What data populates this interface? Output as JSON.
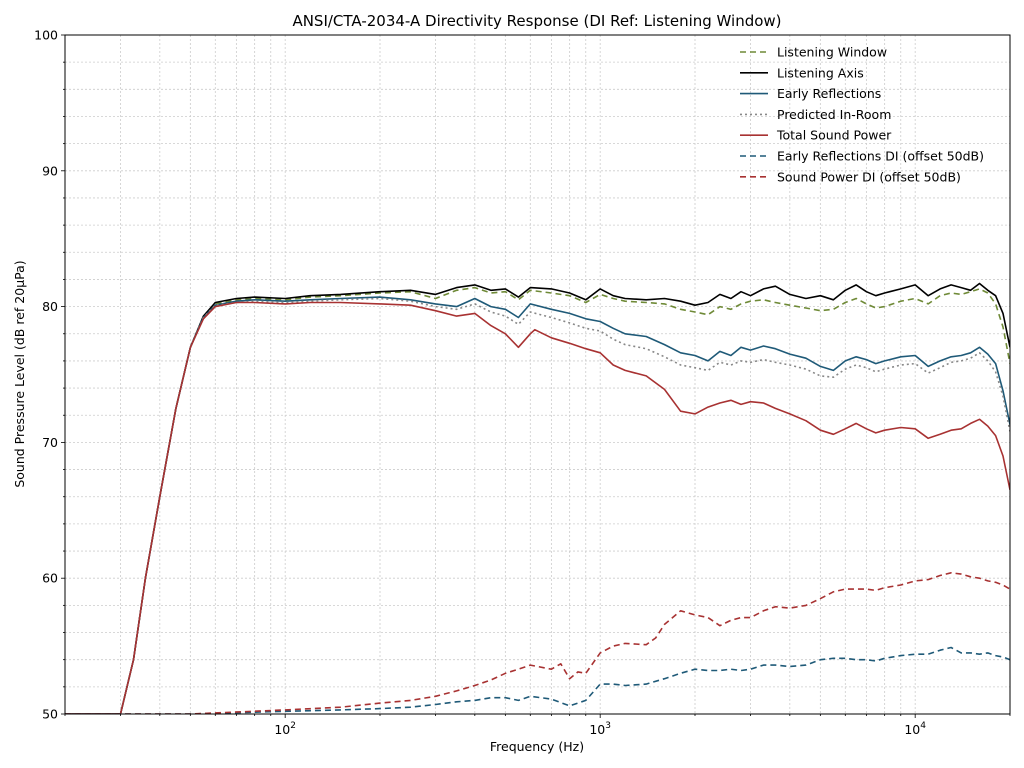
{
  "chart_data": {
    "type": "line",
    "title": "ANSI/CTA-2034-A Directivity Response (DI Ref: Listening Window)",
    "xlabel": "Frequency (Hz)",
    "ylabel": "Sound Pressure Level (dB ref 20µPa)",
    "xscale": "log",
    "xlim": [
      20,
      20000
    ],
    "ylim": [
      50,
      100
    ],
    "grid": true,
    "legend_position": "top-right",
    "x_ticks": [
      {
        "value": 100,
        "base": "10",
        "exp": "2"
      },
      {
        "value": 1000,
        "base": "10",
        "exp": "3"
      },
      {
        "value": 10000,
        "base": "10",
        "exp": "4"
      }
    ],
    "y_ticks": [
      50,
      60,
      70,
      80,
      90,
      100
    ],
    "series": [
      {
        "name": "Listening Window",
        "color": "#6f8a37",
        "dash": "6,4",
        "width": 1.6,
        "x": [
          20,
          30,
          33,
          36,
          40,
          45,
          50,
          55,
          60,
          70,
          80,
          100,
          120,
          150,
          200,
          250,
          300,
          350,
          400,
          450,
          500,
          550,
          600,
          700,
          800,
          900,
          1000,
          1100,
          1200,
          1400,
          1600,
          1800,
          2000,
          2200,
          2400,
          2600,
          2800,
          3000,
          3300,
          3600,
          4000,
          4500,
          5000,
          5500,
          6000,
          6500,
          7000,
          7500,
          8000,
          9000,
          10000,
          11000,
          12000,
          13000,
          14000,
          15000,
          16000,
          17000,
          18000,
          19000,
          20000
        ],
        "y": [
          50,
          50,
          54,
          60,
          66,
          72.5,
          77,
          79.2,
          80.2,
          80.5,
          80.6,
          80.5,
          80.7,
          80.8,
          81.0,
          81.1,
          80.6,
          81.2,
          81.4,
          81.0,
          81.1,
          80.5,
          81.2,
          81.0,
          80.8,
          80.3,
          80.9,
          80.6,
          80.4,
          80.3,
          80.2,
          79.8,
          79.6,
          79.4,
          80.0,
          79.8,
          80.2,
          80.4,
          80.5,
          80.3,
          80.1,
          79.9,
          79.7,
          79.8,
          80.3,
          80.6,
          80.2,
          79.9,
          80.0,
          80.4,
          80.6,
          80.2,
          80.8,
          81.0,
          80.9,
          81.1,
          81.3,
          81.0,
          80.2,
          78.5,
          75.8
        ]
      },
      {
        "name": "Listening Axis",
        "color": "#000000",
        "dash": "",
        "width": 1.6,
        "x": [
          20,
          30,
          33,
          36,
          40,
          45,
          50,
          55,
          60,
          70,
          80,
          100,
          120,
          150,
          200,
          250,
          300,
          350,
          400,
          450,
          500,
          550,
          600,
          700,
          800,
          900,
          1000,
          1100,
          1200,
          1400,
          1600,
          1800,
          2000,
          2200,
          2400,
          2600,
          2800,
          3000,
          3300,
          3600,
          4000,
          4500,
          5000,
          5500,
          6000,
          6500,
          7000,
          7500,
          8000,
          9000,
          10000,
          11000,
          12000,
          13000,
          14000,
          15000,
          16000,
          17000,
          18000,
          19000,
          20000
        ],
        "y": [
          50,
          50,
          54,
          60,
          66,
          72.5,
          77,
          79.3,
          80.3,
          80.6,
          80.7,
          80.6,
          80.8,
          80.9,
          81.1,
          81.2,
          80.9,
          81.4,
          81.6,
          81.2,
          81.3,
          80.7,
          81.4,
          81.3,
          81.0,
          80.5,
          81.3,
          80.8,
          80.6,
          80.5,
          80.6,
          80.4,
          80.1,
          80.3,
          80.9,
          80.6,
          81.1,
          80.8,
          81.3,
          81.5,
          80.9,
          80.6,
          80.8,
          80.5,
          81.2,
          81.6,
          81.1,
          80.8,
          81.0,
          81.3,
          81.6,
          80.8,
          81.3,
          81.6,
          81.4,
          81.2,
          81.7,
          81.2,
          80.8,
          79.5,
          77.0
        ]
      },
      {
        "name": "Early Reflections",
        "color": "#1f5a78",
        "dash": "",
        "width": 1.6,
        "x": [
          20,
          30,
          33,
          36,
          40,
          45,
          50,
          55,
          60,
          70,
          80,
          100,
          120,
          150,
          200,
          250,
          300,
          350,
          400,
          450,
          500,
          550,
          600,
          700,
          800,
          900,
          1000,
          1100,
          1200,
          1400,
          1600,
          1800,
          2000,
          2200,
          2400,
          2600,
          2800,
          3000,
          3300,
          3600,
          4000,
          4500,
          5000,
          5500,
          6000,
          6500,
          7000,
          7500,
          8000,
          9000,
          10000,
          11000,
          12000,
          13000,
          14000,
          15000,
          16000,
          17000,
          18000,
          19000,
          20000
        ],
        "y": [
          50,
          50,
          54,
          60,
          66,
          72.5,
          77,
          79.2,
          80.1,
          80.4,
          80.5,
          80.4,
          80.5,
          80.6,
          80.7,
          80.5,
          80.2,
          80.0,
          80.6,
          80.0,
          79.8,
          79.2,
          80.2,
          79.8,
          79.5,
          79.1,
          78.9,
          78.4,
          78.0,
          77.8,
          77.2,
          76.6,
          76.4,
          76.0,
          76.7,
          76.4,
          77.0,
          76.8,
          77.1,
          76.9,
          76.5,
          76.2,
          75.6,
          75.3,
          76.0,
          76.3,
          76.1,
          75.8,
          76.0,
          76.3,
          76.4,
          75.6,
          76.0,
          76.3,
          76.4,
          76.6,
          77.0,
          76.5,
          75.8,
          73.8,
          71.3
        ]
      },
      {
        "name": "Predicted In-Room",
        "color": "#888888",
        "dash": "2,3",
        "width": 1.6,
        "x": [
          20,
          30,
          33,
          36,
          40,
          45,
          50,
          55,
          60,
          70,
          80,
          100,
          120,
          150,
          200,
          250,
          300,
          350,
          400,
          450,
          500,
          550,
          600,
          700,
          800,
          900,
          1000,
          1100,
          1200,
          1400,
          1600,
          1800,
          2000,
          2200,
          2400,
          2600,
          2800,
          3000,
          3300,
          3600,
          4000,
          4500,
          5000,
          5500,
          6000,
          6500,
          7000,
          7500,
          8000,
          9000,
          10000,
          11000,
          12000,
          13000,
          14000,
          15000,
          16000,
          17000,
          18000,
          19000,
          20000
        ],
        "y": [
          50,
          50,
          54,
          60,
          66,
          72.5,
          77,
          79.2,
          80.1,
          80.3,
          80.4,
          80.3,
          80.4,
          80.5,
          80.6,
          80.4,
          80.0,
          79.8,
          80.2,
          79.6,
          79.3,
          78.7,
          79.6,
          79.2,
          78.8,
          78.4,
          78.2,
          77.6,
          77.2,
          76.9,
          76.3,
          75.7,
          75.5,
          75.3,
          75.9,
          75.7,
          76.0,
          75.9,
          76.1,
          75.9,
          75.7,
          75.4,
          74.9,
          74.8,
          75.4,
          75.7,
          75.5,
          75.2,
          75.4,
          75.7,
          75.8,
          75.1,
          75.5,
          75.9,
          76.0,
          76.2,
          76.6,
          76.0,
          75.2,
          73.4,
          70.8
        ]
      },
      {
        "name": "Total Sound Power",
        "color": "#a83232",
        "dash": "",
        "width": 1.6,
        "x": [
          20,
          30,
          33,
          36,
          40,
          45,
          50,
          55,
          60,
          70,
          80,
          100,
          120,
          150,
          200,
          250,
          300,
          350,
          400,
          450,
          500,
          550,
          600,
          620,
          700,
          800,
          900,
          1000,
          1100,
          1200,
          1400,
          1600,
          1800,
          2000,
          2200,
          2400,
          2600,
          2800,
          3000,
          3300,
          3600,
          4000,
          4500,
          5000,
          5500,
          6000,
          6500,
          7000,
          7500,
          8000,
          9000,
          10000,
          11000,
          12000,
          13000,
          14000,
          15000,
          16000,
          17000,
          18000,
          19000,
          20000
        ],
        "y": [
          50,
          50,
          54,
          60,
          66,
          72.5,
          77,
          79.1,
          80.0,
          80.3,
          80.3,
          80.2,
          80.3,
          80.3,
          80.2,
          80.1,
          79.7,
          79.3,
          79.5,
          78.6,
          78.0,
          77.0,
          78.0,
          78.3,
          77.7,
          77.3,
          76.9,
          76.6,
          75.7,
          75.3,
          74.9,
          73.9,
          72.3,
          72.1,
          72.6,
          72.9,
          73.1,
          72.8,
          73.0,
          72.9,
          72.5,
          72.1,
          71.6,
          70.9,
          70.6,
          71.0,
          71.4,
          71.0,
          70.7,
          70.9,
          71.1,
          71.0,
          70.3,
          70.6,
          70.9,
          71.0,
          71.4,
          71.7,
          71.2,
          70.5,
          69.0,
          66.5
        ]
      },
      {
        "name": "Early Reflections DI (offset 50dB)",
        "color": "#1f5a78",
        "dash": "6,4",
        "width": 1.6,
        "x": [
          20,
          30,
          50,
          100,
          150,
          200,
          250,
          300,
          350,
          400,
          450,
          500,
          550,
          600,
          700,
          800,
          900,
          1000,
          1100,
          1200,
          1400,
          1600,
          1800,
          2000,
          2200,
          2400,
          2600,
          2800,
          3000,
          3300,
          3600,
          4000,
          4500,
          5000,
          5500,
          6000,
          6500,
          7000,
          7500,
          8000,
          9000,
          10000,
          11000,
          12000,
          13000,
          14000,
          15000,
          16000,
          17000,
          18000,
          19000,
          20000
        ],
        "y": [
          50,
          50,
          50,
          50.2,
          50.3,
          50.4,
          50.5,
          50.7,
          50.9,
          51.0,
          51.2,
          51.2,
          51.0,
          51.3,
          51.1,
          50.6,
          51.0,
          52.2,
          52.2,
          52.1,
          52.2,
          52.6,
          53.0,
          53.3,
          53.2,
          53.2,
          53.3,
          53.2,
          53.3,
          53.6,
          53.6,
          53.5,
          53.6,
          54.0,
          54.1,
          54.1,
          54.0,
          54.0,
          53.9,
          54.1,
          54.3,
          54.4,
          54.4,
          54.7,
          54.9,
          54.5,
          54.5,
          54.4,
          54.5,
          54.3,
          54.2,
          54.0
        ]
      },
      {
        "name": "Sound Power DI (offset 50dB)",
        "color": "#a83232",
        "dash": "6,4",
        "width": 1.6,
        "x": [
          20,
          30,
          50,
          100,
          150,
          200,
          250,
          300,
          350,
          400,
          450,
          500,
          550,
          600,
          700,
          750,
          800,
          850,
          900,
          1000,
          1100,
          1200,
          1400,
          1500,
          1600,
          1800,
          2000,
          2200,
          2400,
          2600,
          2800,
          3000,
          3300,
          3600,
          4000,
          4500,
          5000,
          5500,
          6000,
          6500,
          7000,
          7500,
          8000,
          9000,
          10000,
          11000,
          12000,
          13000,
          14000,
          15000,
          16000,
          17000,
          18000,
          19000,
          20000
        ],
        "y": [
          50,
          50,
          50,
          50.3,
          50.5,
          50.8,
          51.0,
          51.3,
          51.7,
          52.1,
          52.5,
          53.0,
          53.3,
          53.6,
          53.3,
          53.7,
          52.6,
          53.1,
          53.0,
          54.5,
          55.0,
          55.2,
          55.1,
          55.6,
          56.6,
          57.6,
          57.3,
          57.1,
          56.5,
          56.9,
          57.1,
          57.1,
          57.6,
          57.9,
          57.8,
          58.0,
          58.5,
          59.0,
          59.2,
          59.2,
          59.2,
          59.1,
          59.3,
          59.5,
          59.8,
          59.9,
          60.2,
          60.4,
          60.3,
          60.1,
          60.0,
          59.8,
          59.7,
          59.5,
          59.2
        ]
      }
    ]
  }
}
